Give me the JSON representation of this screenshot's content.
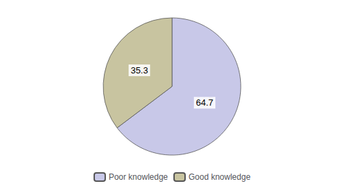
{
  "chart_data": {
    "type": "pie",
    "categories": [
      "Poor knowledge",
      "Good knowledge"
    ],
    "values": [
      64.7,
      35.3
    ],
    "colors": [
      "#c8c8e8",
      "#c8c4a0"
    ],
    "data_labels": true,
    "legend": "bottom"
  }
}
